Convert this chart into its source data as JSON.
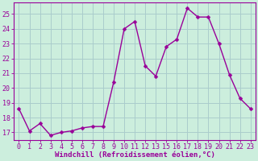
{
  "x_hours": [
    0,
    1,
    2,
    3,
    4,
    5,
    6,
    7,
    8,
    9,
    10,
    11,
    12,
    13,
    15,
    16,
    17,
    18,
    19,
    20,
    21,
    22,
    23
  ],
  "y": [
    18.6,
    17.1,
    17.6,
    16.8,
    17.0,
    17.1,
    17.3,
    17.4,
    17.4,
    20.4,
    24.0,
    24.5,
    21.5,
    20.8,
    22.8,
    23.3,
    25.4,
    24.8,
    24.8,
    23.0,
    20.9,
    19.3,
    18.6
  ],
  "line_color": "#990099",
  "marker_color": "#990099",
  "bg_color": "#cceedd",
  "grid_color": "#aacccc",
  "axis_color": "#990099",
  "tick_color": "#990099",
  "xlabel": "Windchill (Refroidissement éolien,°C)",
  "ylim": [
    16.5,
    25.8
  ],
  "yticks": [
    17,
    18,
    19,
    20,
    21,
    22,
    23,
    24,
    25
  ],
  "xlabel_fontsize": 6.5,
  "tick_fontsize": 6.0,
  "line_width": 1.0,
  "marker_size": 2.5
}
